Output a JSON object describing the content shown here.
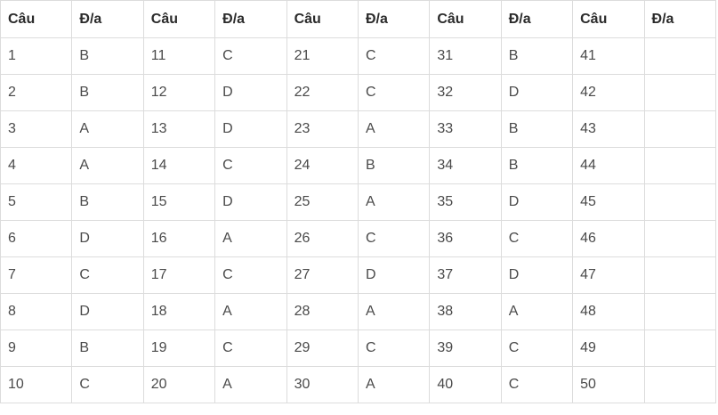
{
  "table": {
    "headers": [
      "Câu",
      "Đ/a",
      "Câu",
      "Đ/a",
      "Câu",
      "Đ/a",
      "Câu",
      "Đ/a",
      "Câu",
      "Đ/a"
    ],
    "rows": [
      [
        "1",
        "B",
        "11",
        "C",
        "21",
        "C",
        "31",
        "B",
        "41",
        ""
      ],
      [
        "2",
        "B",
        "12",
        "D",
        "22",
        "C",
        "32",
        "D",
        "42",
        ""
      ],
      [
        "3",
        "A",
        "13",
        "D",
        "23",
        "A",
        "33",
        "B",
        "43",
        ""
      ],
      [
        "4",
        "A",
        "14",
        "C",
        "24",
        "B",
        "34",
        "B",
        "44",
        ""
      ],
      [
        "5",
        "B",
        "15",
        "D",
        "25",
        "A",
        "35",
        "D",
        "45",
        ""
      ],
      [
        "6",
        "D",
        "16",
        "A",
        "26",
        "C",
        "36",
        "C",
        "46",
        ""
      ],
      [
        "7",
        "C",
        "17",
        "C",
        "27",
        "D",
        "37",
        "D",
        "47",
        ""
      ],
      [
        "8",
        "D",
        "18",
        "A",
        "28",
        "A",
        "38",
        "A",
        "48",
        ""
      ],
      [
        "9",
        "B",
        "19",
        "C",
        "29",
        "C",
        "39",
        "C",
        "49",
        ""
      ],
      [
        "10",
        "C",
        "20",
        "A",
        "30",
        "A",
        "40",
        "C",
        "50",
        ""
      ]
    ]
  },
  "colors": {
    "border": "#dcdcdc",
    "text": "#4a4a4a",
    "header_text": "#2b2b2b"
  }
}
